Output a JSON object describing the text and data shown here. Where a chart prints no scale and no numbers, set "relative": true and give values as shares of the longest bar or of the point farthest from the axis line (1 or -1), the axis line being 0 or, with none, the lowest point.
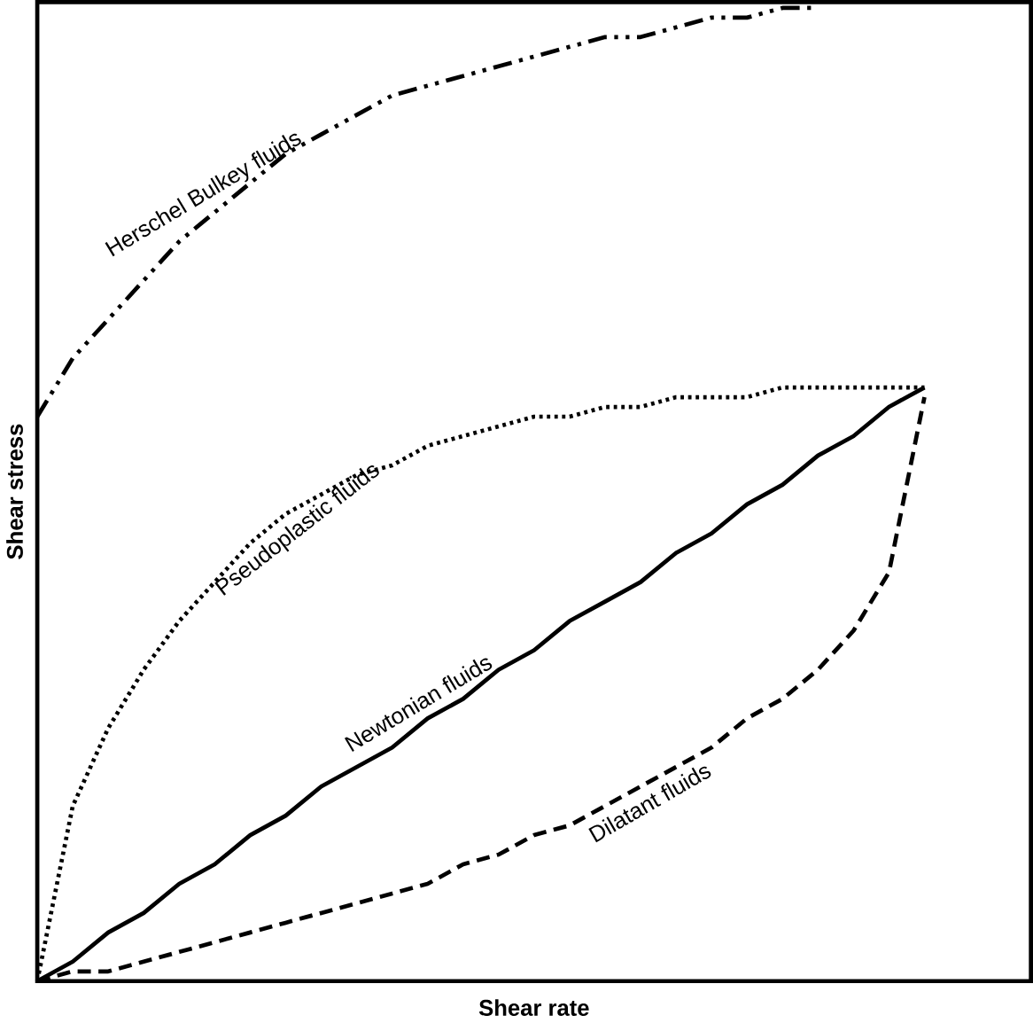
{
  "chart_data": {
    "type": "line",
    "relative": true,
    "xlabel": "Shear rate",
    "ylabel": "Shear stress",
    "legend": false,
    "marker": "none",
    "categories": [
      null,
      null,
      null,
      null,
      null,
      null,
      null,
      null,
      null,
      null,
      null,
      null,
      null,
      null,
      null,
      null,
      null,
      null,
      null,
      null,
      null,
      null,
      null,
      null,
      null,
      null,
      null,
      null,
      null
    ],
    "series": [
      {
        "name": "Herschel Bulkey fluids",
        "color": "#000000",
        "line_style": "dashdot",
        "values": [
          0.58,
          0.64,
          0.68,
          0.72,
          0.76,
          0.79,
          0.82,
          0.85,
          0.87,
          0.89,
          0.91,
          0.92,
          0.93,
          0.94,
          0.95,
          0.96,
          0.97,
          0.97,
          0.98,
          0.99,
          0.99,
          1.0,
          1.0,
          null,
          null,
          null,
          null,
          null,
          null
        ]
      },
      {
        "name": "Pseudoplastic fluids",
        "color": "#000000",
        "line_style": "dotted",
        "values": [
          0,
          0.18,
          0.26,
          0.32,
          0.37,
          0.41,
          0.45,
          0.48,
          0.5,
          0.52,
          0.53,
          0.55,
          0.56,
          0.57,
          0.58,
          0.58,
          0.59,
          0.59,
          0.6,
          0.6,
          0.6,
          0.61,
          0.61,
          0.61,
          0.61,
          0.61,
          null,
          null,
          null
        ]
      },
      {
        "name": "Newtonian fluids",
        "color": "#000000",
        "line_style": "solid",
        "values": [
          0,
          0.02,
          0.05,
          0.07,
          0.1,
          0.12,
          0.15,
          0.17,
          0.2,
          0.22,
          0.24,
          0.27,
          0.29,
          0.32,
          0.34,
          0.37,
          0.39,
          0.41,
          0.44,
          0.46,
          0.49,
          0.51,
          0.54,
          0.56,
          0.59,
          0.61,
          null,
          null,
          null
        ]
      },
      {
        "name": "Dilatant fluids",
        "color": "#000000",
        "line_style": "dashed",
        "values": [
          0,
          0.01,
          0.01,
          0.02,
          0.03,
          0.04,
          0.05,
          0.06,
          0.07,
          0.08,
          0.09,
          0.1,
          0.12,
          0.13,
          0.15,
          0.16,
          0.18,
          0.2,
          0.22,
          0.24,
          0.27,
          0.29,
          0.32,
          0.36,
          0.42,
          0.6,
          null,
          null,
          null
        ]
      }
    ]
  }
}
